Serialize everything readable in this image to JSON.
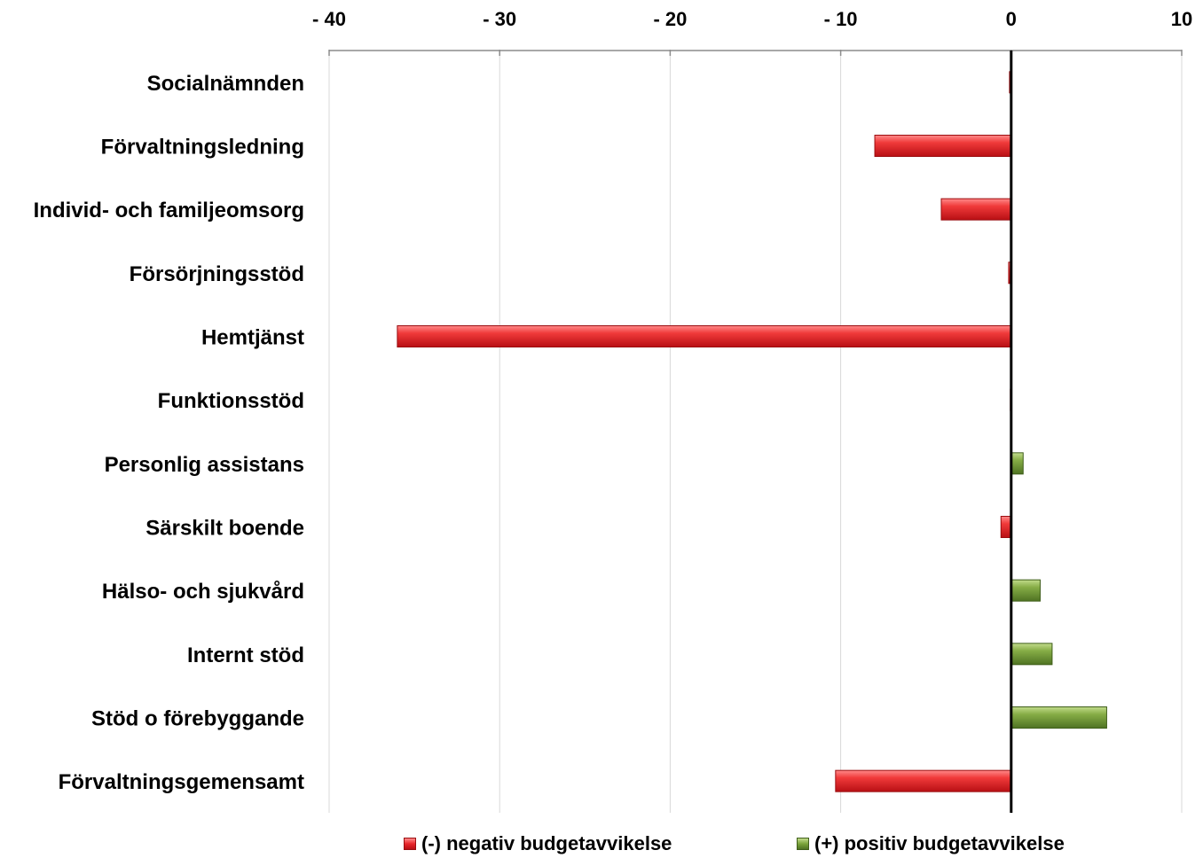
{
  "chart_data": {
    "type": "bar",
    "orientation": "horizontal",
    "title": "",
    "xlabel": "",
    "ylabel": "",
    "xlim": [
      -40,
      10
    ],
    "ticks": [
      -40,
      -30,
      -20,
      -10,
      0,
      10
    ],
    "tick_labels": [
      "- 40",
      "- 30",
      "- 20",
      "- 10",
      "0",
      "10"
    ],
    "grid": true,
    "legend_position": "bottom",
    "categories": [
      "Socialnämnden",
      "Förvaltningsledning",
      "Individ- och familjeomsorg",
      "Försörjningsstöd",
      "Hemtjänst",
      "Funktionsstöd",
      "Personlig assistans",
      "Särskilt boende",
      "Hälso- och sjukvård",
      "Internt stöd",
      "Stöd o förebyggande",
      "Förvaltningsgemensamt"
    ],
    "series": [
      {
        "name": "(-) negativ budgetavvikelse",
        "color": "#e8262b",
        "values": [
          -0.1,
          -8.0,
          -4.1,
          -0.15,
          -36.0,
          -0.05,
          0,
          -0.6,
          0,
          0,
          0,
          -10.3
        ]
      },
      {
        "name": "(+) positiv budgetavvikelse",
        "color": "#7aa33a",
        "values": [
          0,
          0,
          0,
          0,
          0,
          0,
          0.7,
          0,
          1.7,
          2.4,
          5.6,
          0
        ]
      }
    ]
  }
}
